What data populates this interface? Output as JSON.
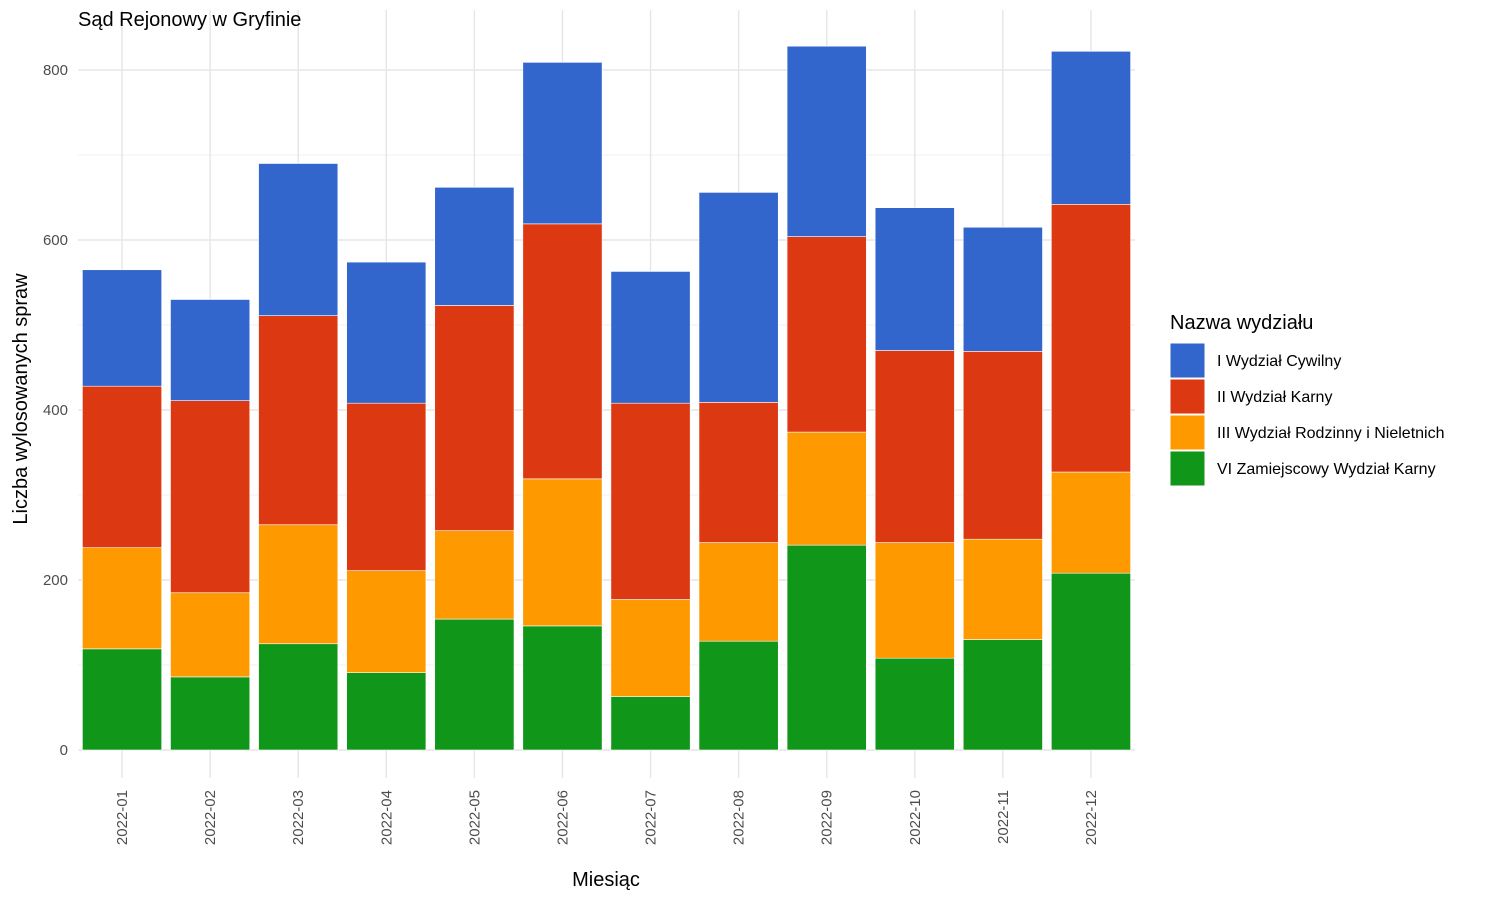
{
  "chart_data": {
    "type": "bar",
    "stacked": true,
    "title": "Sąd Rejonowy w Gryfinie",
    "xlabel": "Miesiąc",
    "ylabel": "Liczba wylosowanych spraw",
    "ylim": [
      0,
      850
    ],
    "y_ticks": [
      0,
      200,
      400,
      600,
      800
    ],
    "grid": true,
    "legend_title": "Nazwa wydziału",
    "legend_position": "right",
    "categories": [
      "2022-01",
      "2022-02",
      "2022-03",
      "2022-04",
      "2022-05",
      "2022-06",
      "2022-07",
      "2022-08",
      "2022-09",
      "2022-10",
      "2022-11",
      "2022-12"
    ],
    "series": [
      {
        "name": "VI Zamiejscowy Wydział Karny",
        "color": "#109618",
        "values": [
          119,
          86,
          125,
          91,
          154,
          146,
          63,
          128,
          241,
          108,
          130,
          208
        ]
      },
      {
        "name": "III Wydział Rodzinny i Nieletnich",
        "color": "#FF9900",
        "values": [
          119,
          99,
          140,
          120,
          104,
          173,
          114,
          116,
          133,
          136,
          118,
          119
        ]
      },
      {
        "name": "II Wydział Karny",
        "color": "#DC3912",
        "values": [
          190,
          226,
          246,
          197,
          265,
          300,
          231,
          165,
          230,
          226,
          221,
          315
        ]
      },
      {
        "name": "I Wydział Cywilny",
        "color": "#3366CC",
        "values": [
          137,
          119,
          179,
          166,
          139,
          190,
          155,
          247,
          224,
          168,
          146,
          180
        ]
      }
    ],
    "legend_order": [
      "I Wydział Cywilny",
      "II Wydział Karny",
      "III Wydział Rodzinny i Nieletnich",
      "VI Zamiejscowy Wydział Karny"
    ]
  }
}
